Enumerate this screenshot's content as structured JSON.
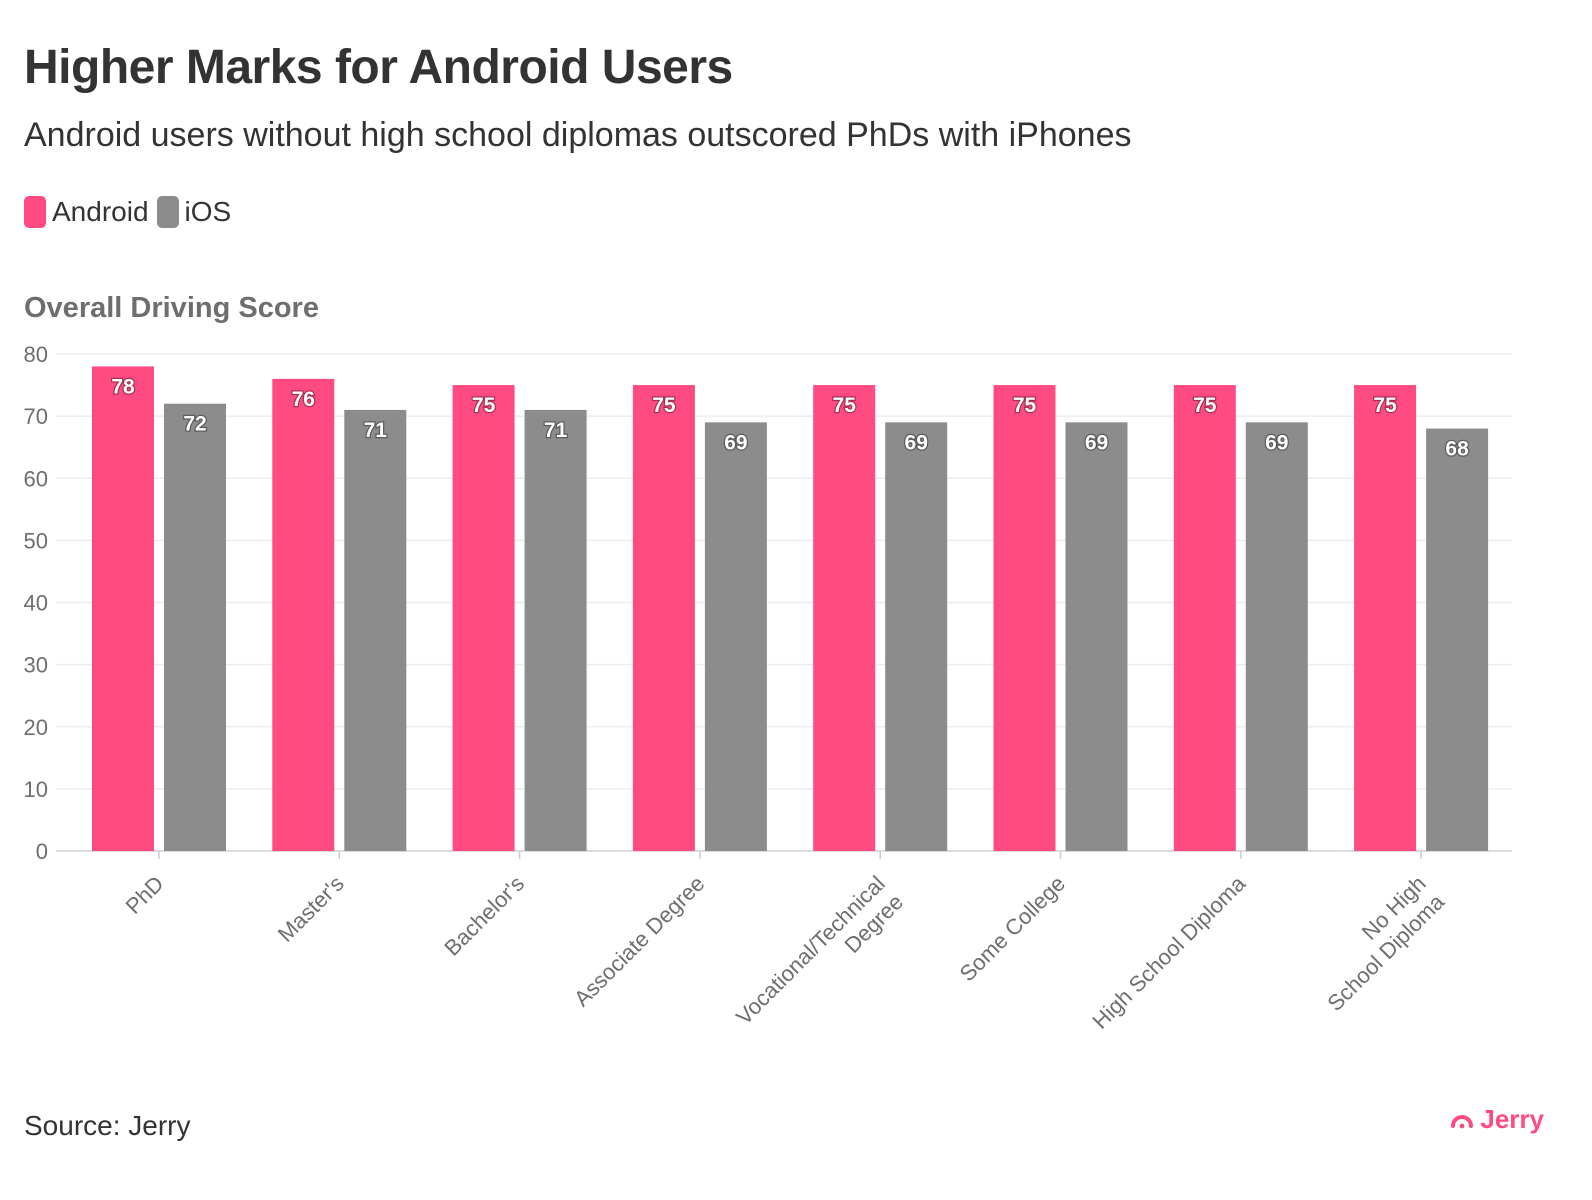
{
  "header": {
    "title": "Higher Marks for Android Users",
    "subtitle": "Android users without high school diplomas outscored PhDs with iPhones"
  },
  "legend": [
    {
      "label": "Android",
      "color": "#ff4b82"
    },
    {
      "label": "iOS",
      "color": "#8c8c8c"
    }
  ],
  "footer": {
    "source": "Source: Jerry",
    "brand": "Jerry",
    "brand_icon": "jerry-logo-icon"
  },
  "chart_data": {
    "type": "bar",
    "ylabel": "Overall Driving Score",
    "xlabel": "",
    "ylim": [
      0,
      80
    ],
    "yticks": [
      0,
      10,
      20,
      30,
      40,
      50,
      60,
      70,
      80
    ],
    "grid": true,
    "legend_position": "top-left",
    "categories": [
      "PhD",
      "Master's",
      "Bachelor's",
      "Associate Degree",
      "Vocational/Technical Degree",
      "Some College",
      "High School Diploma",
      "No High School Diploma"
    ],
    "series": [
      {
        "name": "Android",
        "color": "#ff4b82",
        "values": [
          78,
          76,
          75,
          75,
          75,
          75,
          75,
          75
        ]
      },
      {
        "name": "iOS",
        "color": "#8c8c8c",
        "values": [
          72,
          71,
          71,
          69,
          69,
          69,
          69,
          68
        ]
      }
    ]
  }
}
